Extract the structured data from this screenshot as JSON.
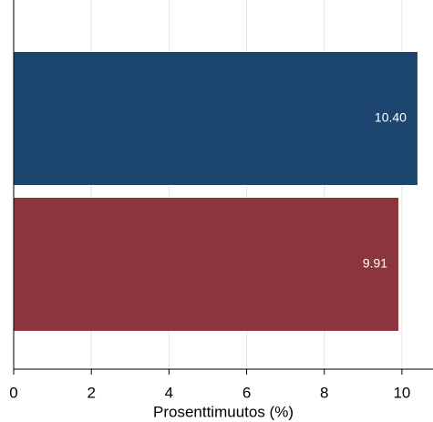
{
  "chart_data": {
    "type": "bar",
    "orientation": "horizontal",
    "categories": [
      null,
      null
    ],
    "series": [
      {
        "colors": [
          "#1c4670",
          "#8b363c"
        ],
        "values": [
          10.4,
          9.91
        ],
        "value_labels": [
          "10.40",
          "9.91"
        ]
      }
    ],
    "x_label": "Prosenttimuutos (%)",
    "xlim": [
      0,
      10.8
    ],
    "xticks": [
      0,
      2,
      4,
      6,
      8,
      10
    ],
    "grid": true
  }
}
